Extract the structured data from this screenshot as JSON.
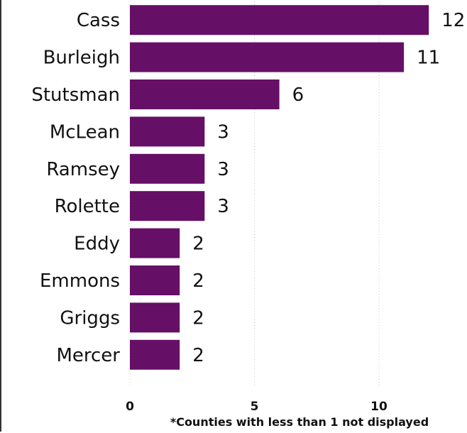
{
  "chart_data": {
    "type": "bar",
    "orientation": "horizontal",
    "categories": [
      "Cass",
      "Burleigh",
      "Stutsman",
      "McLean",
      "Ramsey",
      "Rolette",
      "Eddy",
      "Emmons",
      "Griggs",
      "Mercer"
    ],
    "values": [
      12,
      11,
      6,
      3,
      3,
      3,
      2,
      2,
      2,
      2
    ],
    "title": "",
    "xlabel": "",
    "ylabel": "",
    "xlim": [
      0,
      13
    ],
    "xticks": [
      0,
      5,
      10
    ],
    "grid": "vertical dotted",
    "legend": "none",
    "bar_color": "#660f66",
    "footnote": "*Counties with less than 1 not displayed"
  }
}
